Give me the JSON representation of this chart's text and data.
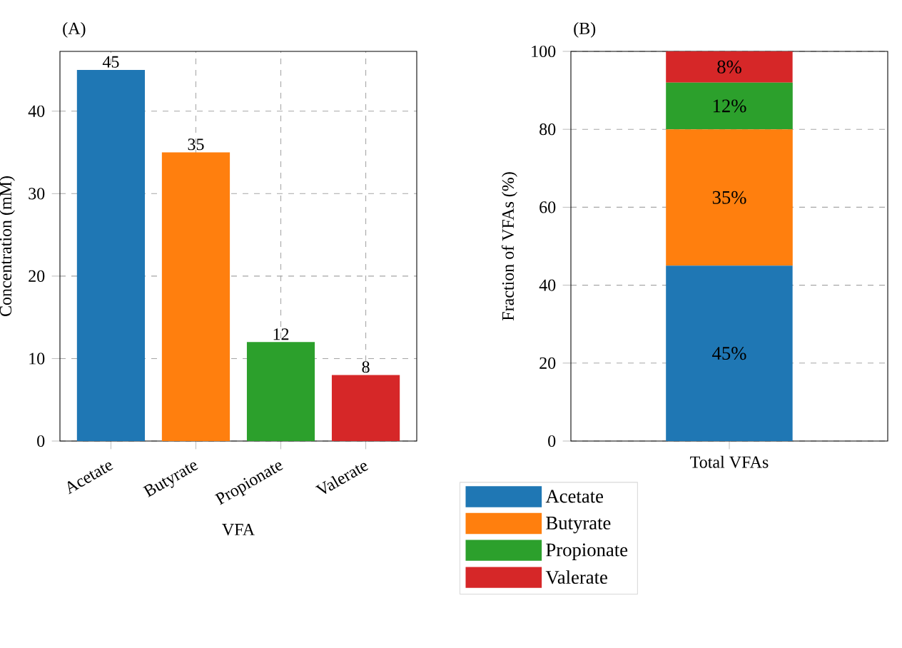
{
  "chart_data": [
    {
      "type": "bar",
      "title": "(A)",
      "xlabel": "VFA",
      "ylabel": "Concentration (mM)",
      "categories": [
        "Acetate",
        "Butyrate",
        "Propionate",
        "Valerate"
      ],
      "values": [
        45,
        35,
        12,
        8
      ],
      "colors": [
        "#1f77b4",
        "#ff7f0e",
        "#2ca02c",
        "#d62728"
      ],
      "ylim": [
        0,
        47.25
      ],
      "yticks": [
        0,
        10,
        20,
        30,
        40
      ],
      "grid": true,
      "data_labels": true
    },
    {
      "type": "bar",
      "title": "(B)",
      "ylabel": "Fraction of VFAs (%)",
      "categories": [
        "Total VFAs"
      ],
      "stacked": true,
      "series": [
        {
          "name": "Acetate",
          "color": "#1f77b4",
          "values": [
            45
          ],
          "value_labels": [
            "45%"
          ]
        },
        {
          "name": "Butyrate",
          "color": "#ff7f0e",
          "values": [
            35
          ],
          "value_labels": [
            "35%"
          ]
        },
        {
          "name": "Propionate",
          "color": "#2ca02c",
          "values": [
            12
          ],
          "value_labels": [
            "12%"
          ]
        },
        {
          "name": "Valerate",
          "color": "#d62728",
          "values": [
            8
          ],
          "value_labels": [
            "8%"
          ]
        }
      ],
      "ylim": [
        0,
        100
      ],
      "yticks": [
        0,
        20,
        40,
        60,
        80,
        100
      ],
      "grid": "y",
      "legend": "bottom"
    }
  ]
}
